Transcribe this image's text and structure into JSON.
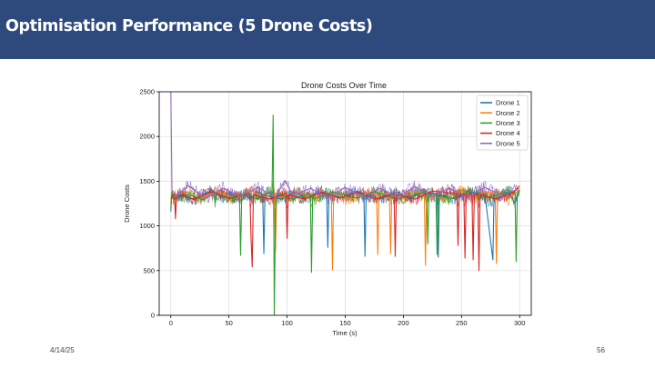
{
  "slide": {
    "title": "Optimisation Performance (5 Drone Costs)",
    "date": "4/14/25",
    "page_number": "56",
    "header_color": "#2e4a7d"
  },
  "chart_data": {
    "type": "line",
    "title": "Drone Costs Over Time",
    "xlabel": "Time (s)",
    "ylabel": "Drone Costs",
    "xlim": [
      -10,
      310
    ],
    "ylim": [
      0,
      2500
    ],
    "xticks": [
      0,
      50,
      100,
      150,
      200,
      250,
      300
    ],
    "yticks": [
      0,
      500,
      1000,
      1500,
      2000,
      2500
    ],
    "grid": true,
    "legend_position": "top-right",
    "series": [
      {
        "name": "Drone 1",
        "color": "#1f77b4",
        "x": [
          0,
          1,
          2,
          10,
          20,
          35,
          45,
          50,
          58,
          63,
          68,
          75,
          79,
          80,
          81,
          95,
          108,
          115,
          125,
          134,
          135,
          136,
          150,
          160,
          166,
          167,
          168,
          180,
          195,
          205,
          215,
          229,
          230,
          231,
          245,
          255,
          270,
          277,
          278,
          279,
          290,
          296,
          300
        ],
        "values": [
          1160,
          1400,
          1300,
          1350,
          1290,
          1400,
          1310,
          1380,
          1300,
          1360,
          1300,
          1380,
          1350,
          690,
          1340,
          1300,
          1380,
          1300,
          1370,
          1360,
          760,
          1350,
          1310,
          1390,
          1360,
          660,
          1350,
          1300,
          1380,
          1300,
          1370,
          1360,
          650,
          1350,
          1300,
          1380,
          1360,
          620,
          1350,
          1300,
          1380,
          1260,
          1400
        ]
      },
      {
        "name": "Drone 2",
        "color": "#ff7f0e",
        "x": [
          0,
          1,
          2,
          12,
          25,
          40,
          55,
          70,
          80,
          89,
          90,
          91,
          100,
          110,
          120,
          138,
          139,
          140,
          155,
          170,
          177,
          178,
          179,
          188,
          189,
          190,
          200,
          210,
          218,
          219,
          220,
          235,
          250,
          260,
          270,
          279,
          280,
          281,
          290,
          300
        ],
        "values": [
          1250,
          1400,
          1320,
          1390,
          1310,
          1380,
          1300,
          1390,
          1320,
          1360,
          710,
          1350,
          1300,
          1390,
          1310,
          1360,
          510,
          1350,
          1300,
          1380,
          1360,
          680,
          1350,
          1360,
          690,
          1350,
          1300,
          1390,
          1360,
          560,
          1350,
          1300,
          1390,
          1310,
          1380,
          1360,
          580,
          1350,
          1300,
          1400
        ]
      },
      {
        "name": "Drone 3",
        "color": "#2ca02c",
        "x": [
          0,
          1,
          2,
          15,
          28,
          37,
          38,
          39,
          55,
          59,
          60,
          61,
          75,
          85,
          87,
          88,
          89,
          90,
          92,
          105,
          120,
          121,
          122,
          123,
          140,
          160,
          175,
          195,
          215,
          220,
          221,
          222,
          228,
          229,
          230,
          240,
          255,
          270,
          290,
          296,
          297,
          298,
          300
        ],
        "values": [
          1200,
          1380,
          1300,
          1350,
          1290,
          1360,
          1260,
          1350,
          1300,
          1360,
          670,
          1350,
          1300,
          1380,
          1360,
          2240,
          0,
          1180,
          1350,
          1300,
          1360,
          480,
          1350,
          1300,
          1380,
          1310,
          1380,
          1300,
          1370,
          1360,
          800,
          1350,
          1360,
          680,
          1350,
          1300,
          1380,
          1310,
          1380,
          1360,
          600,
          1350,
          1400
        ]
      },
      {
        "name": "Drone 4",
        "color": "#d62728",
        "x": [
          0,
          3,
          4,
          5,
          20,
          35,
          50,
          68,
          69,
          70,
          71,
          85,
          99,
          100,
          101,
          115,
          130,
          145,
          160,
          175,
          192,
          193,
          194,
          210,
          225,
          246,
          247,
          248,
          252,
          253,
          254,
          259,
          260,
          261,
          264,
          265,
          266,
          280,
          295,
          300
        ],
        "values": [
          1300,
          1360,
          1080,
          1350,
          1300,
          1380,
          1310,
          1360,
          860,
          540,
          1350,
          1300,
          1360,
          860,
          1350,
          1300,
          1380,
          1310,
          1380,
          1300,
          1360,
          660,
          1350,
          1300,
          1390,
          1360,
          780,
          1350,
          1360,
          640,
          1350,
          1360,
          620,
          1350,
          1360,
          500,
          1350,
          1300,
          1380,
          1450
        ]
      },
      {
        "name": "Drone 5",
        "color": "#9467bd",
        "x": [
          0,
          1,
          5,
          15,
          30,
          45,
          60,
          75,
          90,
          98,
          105,
          120,
          135,
          150,
          165,
          180,
          195,
          210,
          225,
          240,
          255,
          270,
          285,
          300
        ],
        "values": [
          2500,
          1400,
          1330,
          1450,
          1310,
          1420,
          1330,
          1430,
          1320,
          1510,
          1340,
          1420,
          1320,
          1430,
          1330,
          1420,
          1320,
          1440,
          1330,
          1420,
          1320,
          1430,
          1340,
          1420
        ]
      }
    ]
  }
}
